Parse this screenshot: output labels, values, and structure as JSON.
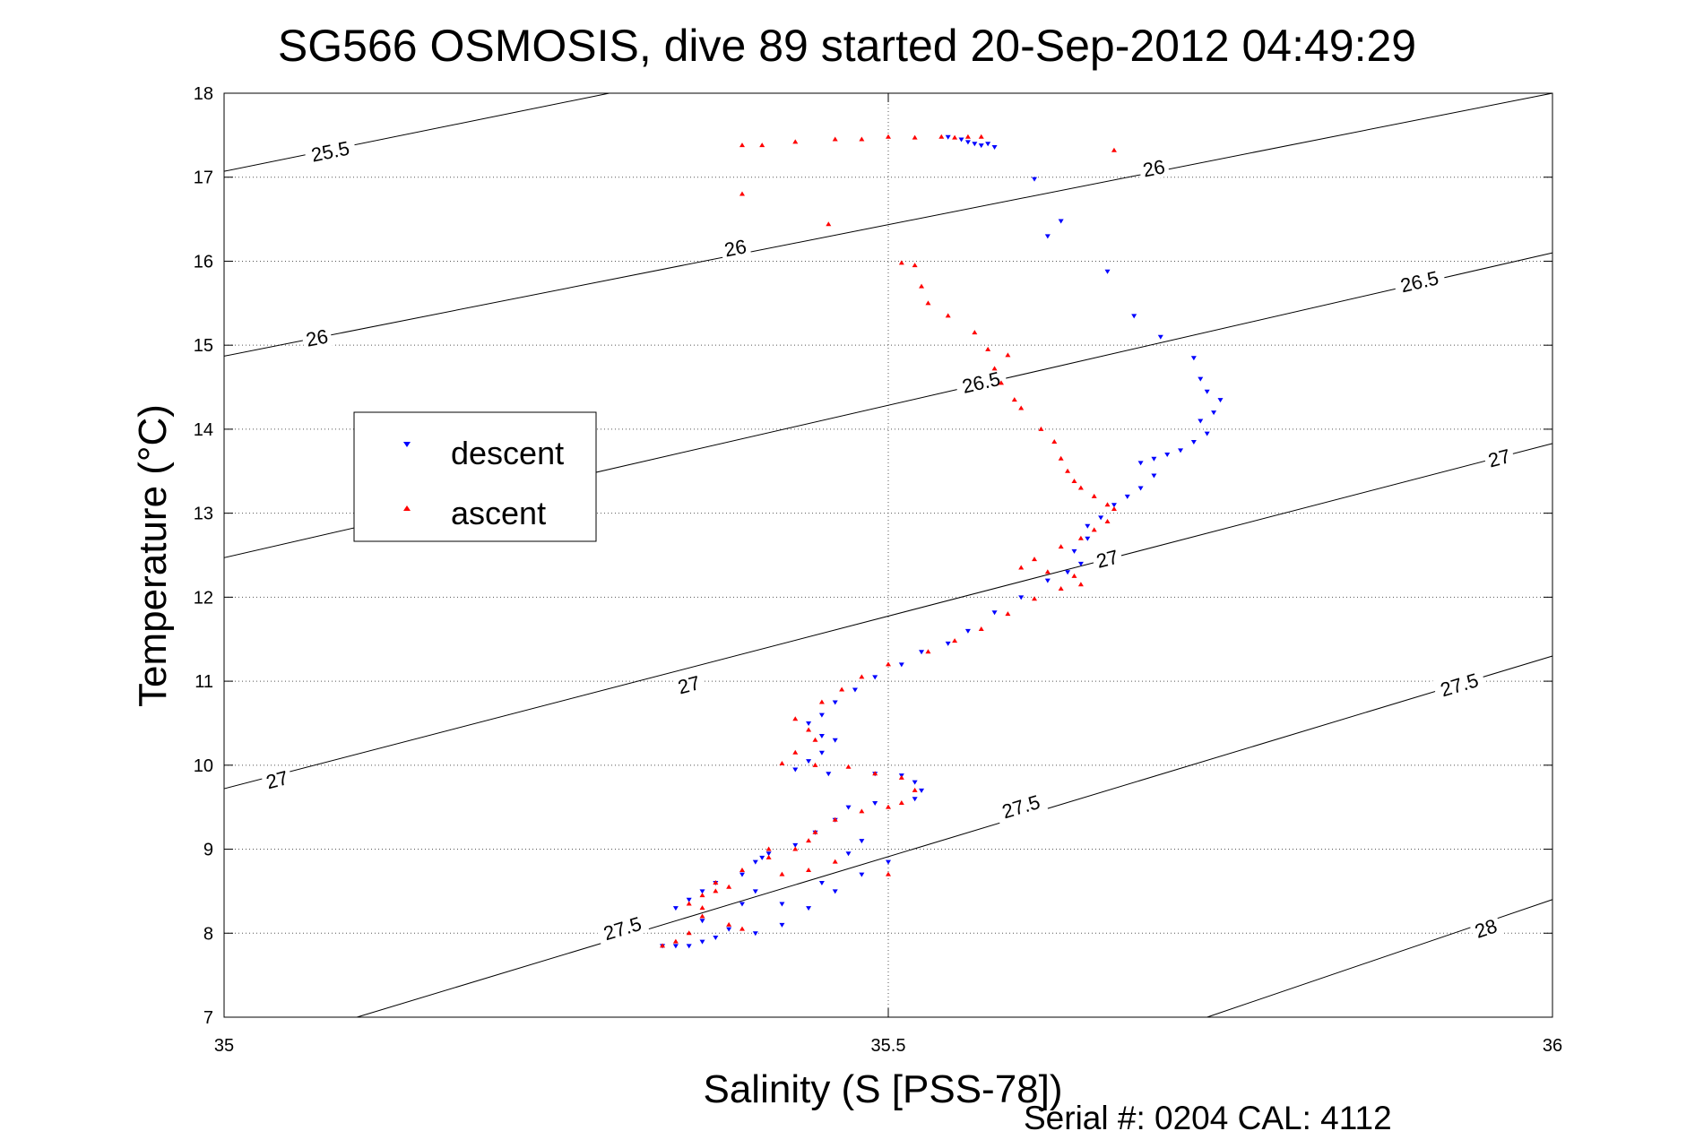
{
  "chart_data": {
    "type": "scatter",
    "title": "SG566 OSMOSIS, dive 89 started 20-Sep-2012 04:49:29",
    "xlabel": "Salinity (S [PSS-78])",
    "ylabel": "Temperature (°C)",
    "xlim": [
      35,
      36
    ],
    "ylim": [
      7,
      18
    ],
    "xticks": [
      35,
      35.5,
      36
    ],
    "xtick_labels": [
      "35",
      "35.5",
      "36"
    ],
    "yticks": [
      7,
      8,
      9,
      10,
      11,
      12,
      13,
      14,
      15,
      16,
      17,
      18
    ],
    "ytick_labels": [
      "7",
      "8",
      "9",
      "10",
      "11",
      "12",
      "13",
      "14",
      "15",
      "16",
      "17",
      "18"
    ],
    "grid": true,
    "legend_position": "left",
    "footer": "Serial #: 0204  CAL: 4112",
    "density_contours": [
      {
        "level": "25.5",
        "points": [
          [
            35.0,
            17.07
          ],
          [
            35.29,
            18.0
          ]
        ],
        "labels": [
          {
            "x": 35.08,
            "y": 17.3,
            "text": "25.5"
          }
        ]
      },
      {
        "level": "26",
        "points": [
          [
            35.0,
            14.87
          ],
          [
            36.0,
            18.0
          ]
        ],
        "labels": [
          {
            "x": 35.07,
            "y": 15.08,
            "text": "26"
          },
          {
            "x": 35.385,
            "y": 16.15,
            "text": "26"
          },
          {
            "x": 35.7,
            "y": 17.1,
            "text": "26"
          }
        ]
      },
      {
        "level": "26.5",
        "points": [
          [
            35.0,
            12.47
          ],
          [
            36.0,
            16.1
          ]
        ],
        "labels": [
          {
            "x": 35.57,
            "y": 14.55,
            "text": "26.5"
          },
          {
            "x": 35.9,
            "y": 15.75,
            "text": "26.5"
          }
        ]
      },
      {
        "level": "27",
        "points": [
          [
            35.0,
            9.72
          ],
          [
            36.0,
            13.83
          ]
        ],
        "labels": [
          {
            "x": 35.04,
            "y": 9.82,
            "text": "27"
          },
          {
            "x": 35.35,
            "y": 10.95,
            "text": "27"
          },
          {
            "x": 35.665,
            "y": 12.45,
            "text": "27"
          },
          {
            "x": 35.96,
            "y": 13.65,
            "text": "27"
          }
        ]
      },
      {
        "level": "27.5",
        "points": [
          [
            35.1,
            7.0
          ],
          [
            36.0,
            11.3
          ]
        ],
        "labels": [
          {
            "x": 35.3,
            "y": 8.05,
            "text": "27.5"
          },
          {
            "x": 35.6,
            "y": 9.5,
            "text": "27.5"
          },
          {
            "x": 35.93,
            "y": 10.95,
            "text": "27.5"
          }
        ]
      },
      {
        "level": "28",
        "points": [
          [
            35.74,
            7.0
          ],
          [
            36.0,
            8.4
          ]
        ],
        "labels": [
          {
            "x": 35.95,
            "y": 8.05,
            "text": "28"
          }
        ]
      }
    ],
    "series": [
      {
        "name": "descent",
        "color": "#0000ff",
        "marker": "triangle-down",
        "points": [
          [
            35.545,
            17.48
          ],
          [
            35.555,
            17.45
          ],
          [
            35.56,
            17.42
          ],
          [
            35.565,
            17.4
          ],
          [
            35.57,
            17.38
          ],
          [
            35.575,
            17.4
          ],
          [
            35.58,
            17.36
          ],
          [
            35.61,
            16.98
          ],
          [
            35.63,
            16.48
          ],
          [
            35.62,
            16.3
          ],
          [
            35.665,
            15.88
          ],
          [
            35.685,
            15.35
          ],
          [
            35.705,
            15.1
          ],
          [
            35.73,
            14.85
          ],
          [
            35.735,
            14.6
          ],
          [
            35.74,
            14.45
          ],
          [
            35.75,
            14.35
          ],
          [
            35.745,
            14.2
          ],
          [
            35.735,
            14.1
          ],
          [
            35.74,
            13.95
          ],
          [
            35.73,
            13.85
          ],
          [
            35.72,
            13.75
          ],
          [
            35.71,
            13.7
          ],
          [
            35.7,
            13.65
          ],
          [
            35.69,
            13.6
          ],
          [
            35.7,
            13.45
          ],
          [
            35.69,
            13.3
          ],
          [
            35.68,
            13.2
          ],
          [
            35.67,
            13.1
          ],
          [
            35.66,
            12.95
          ],
          [
            35.65,
            12.85
          ],
          [
            35.65,
            12.7
          ],
          [
            35.64,
            12.55
          ],
          [
            35.645,
            12.4
          ],
          [
            35.635,
            12.3
          ],
          [
            35.62,
            12.2
          ],
          [
            35.6,
            12.0
          ],
          [
            35.58,
            11.82
          ],
          [
            35.56,
            11.6
          ],
          [
            35.545,
            11.45
          ],
          [
            35.525,
            11.35
          ],
          [
            35.51,
            11.2
          ],
          [
            35.49,
            11.05
          ],
          [
            35.475,
            10.9
          ],
          [
            35.46,
            10.75
          ],
          [
            35.45,
            10.6
          ],
          [
            35.44,
            10.5
          ],
          [
            35.45,
            10.35
          ],
          [
            35.46,
            10.3
          ],
          [
            35.45,
            10.15
          ],
          [
            35.44,
            10.05
          ],
          [
            35.43,
            9.95
          ],
          [
            35.455,
            9.9
          ],
          [
            35.49,
            9.9
          ],
          [
            35.51,
            9.88
          ],
          [
            35.52,
            9.8
          ],
          [
            35.525,
            9.7
          ],
          [
            35.52,
            9.6
          ],
          [
            35.49,
            9.55
          ],
          [
            35.47,
            9.5
          ],
          [
            35.46,
            9.35
          ],
          [
            35.445,
            9.2
          ],
          [
            35.43,
            9.05
          ],
          [
            35.41,
            8.95
          ],
          [
            35.4,
            8.85
          ],
          [
            35.39,
            8.7
          ],
          [
            35.37,
            8.6
          ],
          [
            35.36,
            8.5
          ],
          [
            35.35,
            8.4
          ],
          [
            35.34,
            8.3
          ],
          [
            35.36,
            8.15
          ],
          [
            35.38,
            8.05
          ],
          [
            35.4,
            8.0
          ],
          [
            35.42,
            8.1
          ],
          [
            35.44,
            8.3
          ],
          [
            35.46,
            8.5
          ],
          [
            35.48,
            8.7
          ],
          [
            35.5,
            8.85
          ],
          [
            35.37,
            7.95
          ],
          [
            35.36,
            7.9
          ],
          [
            35.35,
            7.85
          ],
          [
            35.34,
            7.85
          ],
          [
            35.33,
            7.85
          ],
          [
            35.42,
            8.35
          ],
          [
            35.45,
            8.6
          ],
          [
            35.47,
            8.95
          ],
          [
            35.48,
            9.1
          ],
          [
            35.405,
            8.9
          ],
          [
            35.39,
            8.35
          ],
          [
            35.4,
            8.5
          ]
        ]
      },
      {
        "name": "ascent",
        "color": "#ff0000",
        "marker": "triangle-up",
        "points": [
          [
            35.39,
            17.38
          ],
          [
            35.405,
            17.38
          ],
          [
            35.43,
            17.42
          ],
          [
            35.46,
            17.45
          ],
          [
            35.48,
            17.45
          ],
          [
            35.5,
            17.48
          ],
          [
            35.52,
            17.47
          ],
          [
            35.54,
            17.48
          ],
          [
            35.55,
            17.47
          ],
          [
            35.56,
            17.48
          ],
          [
            35.57,
            17.48
          ],
          [
            35.39,
            16.8
          ],
          [
            35.455,
            16.44
          ],
          [
            35.67,
            17.32
          ],
          [
            35.51,
            15.98
          ],
          [
            35.52,
            15.95
          ],
          [
            35.525,
            15.7
          ],
          [
            35.53,
            15.5
          ],
          [
            35.545,
            15.35
          ],
          [
            35.565,
            15.15
          ],
          [
            35.575,
            14.95
          ],
          [
            35.59,
            14.88
          ],
          [
            35.58,
            14.72
          ],
          [
            35.585,
            14.55
          ],
          [
            35.595,
            14.35
          ],
          [
            35.6,
            14.25
          ],
          [
            35.615,
            14.0
          ],
          [
            35.625,
            13.85
          ],
          [
            35.63,
            13.65
          ],
          [
            35.635,
            13.5
          ],
          [
            35.64,
            13.38
          ],
          [
            35.645,
            13.3
          ],
          [
            35.655,
            13.2
          ],
          [
            35.665,
            13.1
          ],
          [
            35.67,
            13.05
          ],
          [
            35.665,
            12.9
          ],
          [
            35.655,
            12.8
          ],
          [
            35.645,
            12.7
          ],
          [
            35.63,
            12.6
          ],
          [
            35.61,
            12.45
          ],
          [
            35.6,
            12.35
          ],
          [
            35.62,
            12.3
          ],
          [
            35.64,
            12.25
          ],
          [
            35.645,
            12.15
          ],
          [
            35.63,
            12.1
          ],
          [
            35.61,
            11.98
          ],
          [
            35.59,
            11.8
          ],
          [
            35.57,
            11.62
          ],
          [
            35.55,
            11.48
          ],
          [
            35.53,
            11.35
          ],
          [
            35.5,
            11.2
          ],
          [
            35.48,
            11.05
          ],
          [
            35.465,
            10.9
          ],
          [
            35.45,
            10.75
          ],
          [
            35.43,
            10.55
          ],
          [
            35.44,
            10.42
          ],
          [
            35.445,
            10.3
          ],
          [
            35.43,
            10.15
          ],
          [
            35.42,
            10.02
          ],
          [
            35.445,
            10.0
          ],
          [
            35.47,
            9.98
          ],
          [
            35.49,
            9.9
          ],
          [
            35.51,
            9.85
          ],
          [
            35.52,
            9.7
          ],
          [
            35.51,
            9.55
          ],
          [
            35.48,
            9.45
          ],
          [
            35.46,
            9.35
          ],
          [
            35.445,
            9.2
          ],
          [
            35.43,
            9.0
          ],
          [
            35.41,
            8.9
          ],
          [
            35.39,
            8.75
          ],
          [
            35.37,
            8.6
          ],
          [
            35.36,
            8.45
          ],
          [
            35.35,
            8.35
          ],
          [
            35.36,
            8.2
          ],
          [
            35.38,
            8.1
          ],
          [
            35.39,
            8.05
          ],
          [
            35.33,
            7.85
          ],
          [
            35.34,
            7.9
          ],
          [
            35.35,
            8.0
          ],
          [
            35.36,
            8.3
          ],
          [
            35.37,
            8.5
          ],
          [
            35.38,
            8.55
          ],
          [
            35.42,
            8.7
          ],
          [
            35.44,
            8.75
          ],
          [
            35.46,
            8.85
          ],
          [
            35.5,
            8.7
          ],
          [
            35.5,
            9.5
          ],
          [
            35.44,
            9.1
          ],
          [
            35.41,
            9.0
          ]
        ]
      }
    ]
  }
}
